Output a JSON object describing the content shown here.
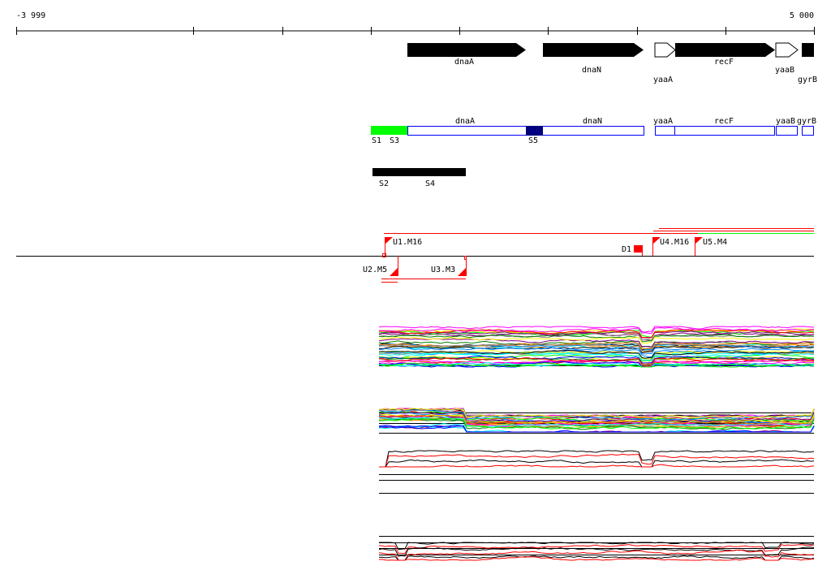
{
  "axis": {
    "start_label": "-3 999",
    "end_label": "5 000"
  },
  "genes": [
    "dnaA",
    "dnaN",
    "yaaA",
    "recF",
    "yaaB",
    "gyrB"
  ],
  "segments": {
    "s1": "S1",
    "s2": "S2",
    "s3": "S3",
    "s4": "S4",
    "s5": "S5"
  },
  "markers": {
    "u1": "U1.M16",
    "u2": "U2.M5",
    "u3": "U3.M3",
    "u4": "U4.M16",
    "u5": "U5.M4",
    "d1": "D1"
  },
  "colors": {
    "gene_outline": "#0000ff",
    "green": "#00ff00",
    "navy": "#000080",
    "marker": "#ff0000"
  }
}
